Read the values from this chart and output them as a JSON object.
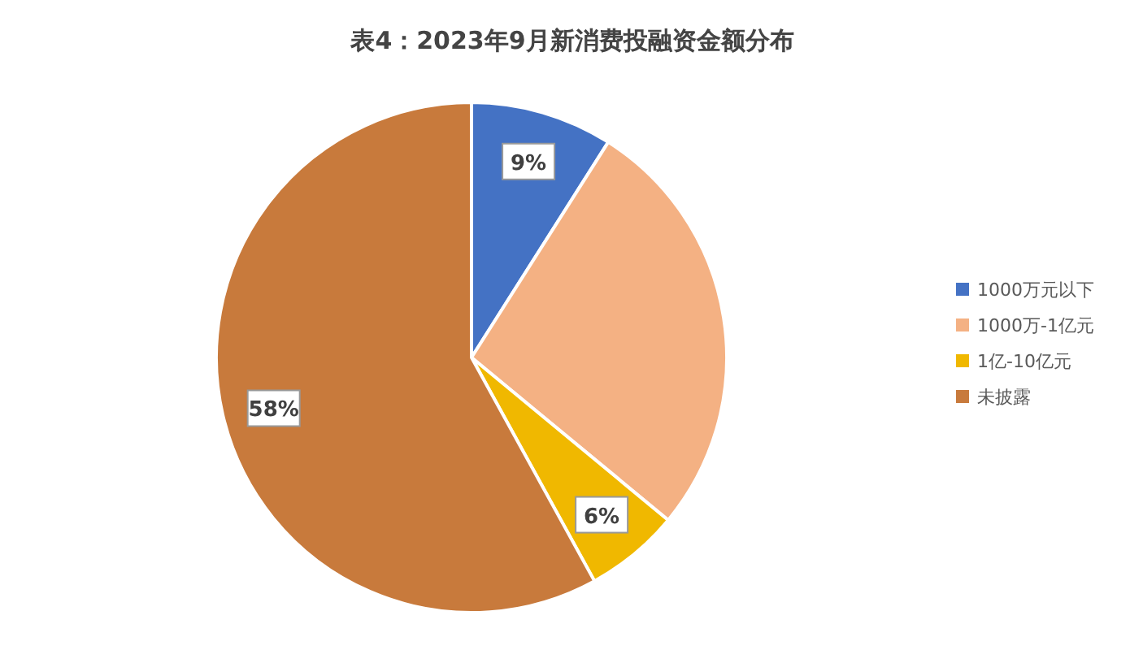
{
  "chart_data": {
    "type": "pie",
    "title": "表4：2023年9月新消费投融资金额分布",
    "categories": [
      "1000万元以下",
      "1000万-1亿元",
      "1亿-10亿元",
      "未披露"
    ],
    "values": [
      9,
      27,
      6,
      58
    ],
    "colors": [
      "#4472c4",
      "#f4b183",
      "#f0b800",
      "#c87a3c"
    ],
    "value_labels": [
      "9%",
      null,
      "6%",
      "58%"
    ],
    "legend": "right"
  }
}
